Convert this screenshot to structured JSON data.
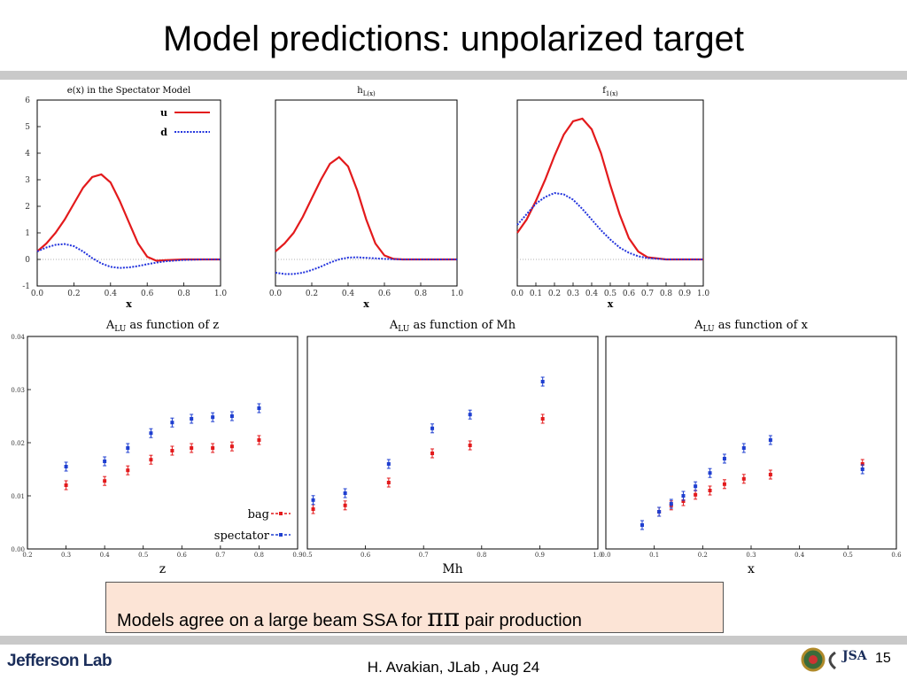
{
  "slide": {
    "title": "Model predictions: unpolarized target",
    "caption_pre": "Models agree on a large beam SSA for ",
    "caption_symbol": "ππ",
    "caption_post": " pair production",
    "footer": "H. Avakian, JLab ,  Aug 24",
    "page_number": "15",
    "logo_text": "Jefferson Lab",
    "logo_right_text": "JSA",
    "accent_colors": {
      "u_curve": "#e31a1c",
      "d_curve": "#2233dd",
      "bag_points": "#e31a1c",
      "spectator_points": "#1f3fd0"
    }
  },
  "chart_data": [
    {
      "type": "line",
      "title": "e(x) in the Spectator Model",
      "xlabel": "x",
      "xlim": [
        0,
        1
      ],
      "ylim": [
        -1,
        6
      ],
      "xticks": [
        "0.0",
        "0.2",
        "0.4",
        "0.6",
        "0.8",
        "1.0"
      ],
      "yticks": [
        "-1",
        "0",
        "1",
        "2",
        "3",
        "4",
        "5",
        "6"
      ],
      "legend": "top-right",
      "series": [
        {
          "name": "u",
          "color": "#e31a1c",
          "style": "solid",
          "x": [
            0.0,
            0.05,
            0.1,
            0.15,
            0.2,
            0.25,
            0.3,
            0.35,
            0.4,
            0.45,
            0.5,
            0.55,
            0.6,
            0.65,
            0.7,
            0.8,
            0.9,
            1.0
          ],
          "y": [
            0.3,
            0.6,
            1.0,
            1.5,
            2.1,
            2.7,
            3.1,
            3.2,
            2.9,
            2.2,
            1.4,
            0.6,
            0.1,
            -0.05,
            -0.03,
            0.0,
            0.0,
            0.0
          ]
        },
        {
          "name": "d",
          "color": "#2233dd",
          "style": "dashed",
          "x": [
            0.0,
            0.05,
            0.1,
            0.15,
            0.2,
            0.25,
            0.3,
            0.35,
            0.4,
            0.45,
            0.5,
            0.55,
            0.6,
            0.65,
            0.7,
            0.8,
            0.9,
            1.0
          ],
          "y": [
            0.3,
            0.45,
            0.55,
            0.58,
            0.5,
            0.3,
            0.05,
            -0.15,
            -0.28,
            -0.32,
            -0.3,
            -0.25,
            -0.18,
            -0.12,
            -0.07,
            -0.02,
            0.0,
            0.0
          ]
        }
      ]
    },
    {
      "type": "line",
      "title": "h_L(x)",
      "xlabel": "x",
      "xlim": [
        0,
        1
      ],
      "ylim": [
        -1,
        6
      ],
      "xticks": [
        "0.0",
        "0.2",
        "0.4",
        "0.6",
        "0.8",
        "1.0"
      ],
      "yticks": [],
      "series": [
        {
          "name": "",
          "color": "#e31a1c",
          "style": "solid",
          "x": [
            0.0,
            0.05,
            0.1,
            0.15,
            0.2,
            0.25,
            0.3,
            0.35,
            0.4,
            0.45,
            0.5,
            0.55,
            0.6,
            0.65,
            0.7,
            0.8,
            0.9,
            1.0
          ],
          "y": [
            0.3,
            0.6,
            1.0,
            1.6,
            2.3,
            3.0,
            3.6,
            3.85,
            3.5,
            2.6,
            1.5,
            0.6,
            0.15,
            0.02,
            0.0,
            0.0,
            0.0,
            0.0
          ]
        },
        {
          "name": "",
          "color": "#2233dd",
          "style": "dashed",
          "x": [
            0.0,
            0.05,
            0.1,
            0.15,
            0.2,
            0.25,
            0.3,
            0.35,
            0.4,
            0.45,
            0.5,
            0.55,
            0.6,
            0.65,
            0.7,
            0.8,
            0.9,
            1.0
          ],
          "y": [
            -0.5,
            -0.55,
            -0.55,
            -0.5,
            -0.4,
            -0.27,
            -0.12,
            0.0,
            0.07,
            0.08,
            0.06,
            0.04,
            0.02,
            0.01,
            0.0,
            0.0,
            0.0,
            0.0
          ]
        }
      ]
    },
    {
      "type": "line",
      "title": "f_1(x)",
      "xlabel": "x",
      "xlim": [
        0,
        1
      ],
      "ylim": [
        -1,
        6
      ],
      "xticks": [
        "0.0",
        "0.1",
        "0.2",
        "0.3",
        "0.4",
        "0.5",
        "0.6",
        "0.7",
        "0.8",
        "0.9",
        "1.0"
      ],
      "yticks": [],
      "series": [
        {
          "name": "",
          "color": "#e31a1c",
          "style": "solid",
          "x": [
            0.0,
            0.05,
            0.1,
            0.15,
            0.2,
            0.25,
            0.3,
            0.35,
            0.4,
            0.45,
            0.5,
            0.55,
            0.6,
            0.65,
            0.7,
            0.8,
            0.9,
            1.0
          ],
          "y": [
            1.0,
            1.5,
            2.2,
            3.0,
            3.9,
            4.7,
            5.2,
            5.3,
            4.9,
            4.0,
            2.8,
            1.7,
            0.8,
            0.3,
            0.08,
            0.0,
            0.0,
            0.0
          ]
        },
        {
          "name": "",
          "color": "#2233dd",
          "style": "dashed",
          "x": [
            0.0,
            0.05,
            0.1,
            0.15,
            0.2,
            0.25,
            0.3,
            0.35,
            0.4,
            0.45,
            0.5,
            0.55,
            0.6,
            0.65,
            0.7,
            0.8,
            0.9,
            1.0
          ],
          "y": [
            1.3,
            1.7,
            2.1,
            2.35,
            2.5,
            2.45,
            2.25,
            1.9,
            1.5,
            1.1,
            0.75,
            0.45,
            0.25,
            0.12,
            0.05,
            0.0,
            0.0,
            0.0
          ]
        }
      ]
    },
    {
      "type": "scatter",
      "title": "A_LU  as function of z",
      "xlabel": "z",
      "xlim": [
        0.2,
        0.9
      ],
      "ylim": [
        0,
        0.04
      ],
      "xticks": [
        "0.2",
        "0.3",
        "0.4",
        "0.5",
        "0.6",
        "0.7",
        "0.8",
        "0.9"
      ],
      "yticks": [
        "0.00",
        "0.01",
        "0.02",
        "0.03",
        "0.04"
      ],
      "legend": "bottom-right",
      "series": [
        {
          "name": "bag",
          "color": "#e31a1c",
          "x": [
            0.3,
            0.4,
            0.46,
            0.52,
            0.575,
            0.625,
            0.68,
            0.73,
            0.8
          ],
          "y": [
            0.012,
            0.0128,
            0.0148,
            0.0168,
            0.0185,
            0.019,
            0.019,
            0.0193,
            0.0205
          ]
        },
        {
          "name": "spectator",
          "color": "#1f3fd0",
          "x": [
            0.3,
            0.4,
            0.46,
            0.52,
            0.575,
            0.625,
            0.68,
            0.73,
            0.8
          ],
          "y": [
            0.0155,
            0.0165,
            0.019,
            0.0218,
            0.0238,
            0.0245,
            0.0248,
            0.025,
            0.0265
          ]
        }
      ]
    },
    {
      "type": "scatter",
      "title": "A_LU as function of Mh",
      "xlabel": "Mh",
      "xlim": [
        0.5,
        1.0
      ],
      "ylim": [
        0,
        0.04
      ],
      "xticks": [
        "0.5",
        "0.6",
        "0.7",
        "0.8",
        "0.9",
        "1.0"
      ],
      "yticks": [],
      "series": [
        {
          "name": "bag",
          "color": "#e31a1c",
          "x": [
            0.51,
            0.565,
            0.64,
            0.715,
            0.78,
            0.905
          ],
          "y": [
            0.0075,
            0.0082,
            0.0125,
            0.018,
            0.0195,
            0.0245
          ]
        },
        {
          "name": "spectator",
          "color": "#1f3fd0",
          "x": [
            0.51,
            0.565,
            0.64,
            0.715,
            0.78,
            0.905
          ],
          "y": [
            0.0092,
            0.0105,
            0.016,
            0.0227,
            0.0253,
            0.0315
          ]
        }
      ]
    },
    {
      "type": "scatter",
      "title": "A_LU as function of x",
      "xlabel": "x",
      "xlim": [
        0.0,
        0.6
      ],
      "ylim": [
        0,
        0.04
      ],
      "xticks": [
        "0.0",
        "0.1",
        "0.2",
        "0.3",
        "0.4",
        "0.5",
        "0.6"
      ],
      "yticks": [],
      "series": [
        {
          "name": "bag",
          "color": "#e31a1c",
          "x": [
            0.075,
            0.11,
            0.135,
            0.16,
            0.185,
            0.215,
            0.245,
            0.285,
            0.34,
            0.53
          ],
          "y": [
            0.0045,
            0.007,
            0.0082,
            0.009,
            0.0102,
            0.011,
            0.0122,
            0.0132,
            0.014,
            0.016
          ]
        },
        {
          "name": "spectator",
          "color": "#1f3fd0",
          "x": [
            0.075,
            0.11,
            0.135,
            0.16,
            0.185,
            0.215,
            0.245,
            0.285,
            0.34,
            0.53
          ],
          "y": [
            0.0045,
            0.007,
            0.0085,
            0.01,
            0.0118,
            0.0143,
            0.017,
            0.019,
            0.0205,
            0.015
          ]
        }
      ]
    }
  ]
}
